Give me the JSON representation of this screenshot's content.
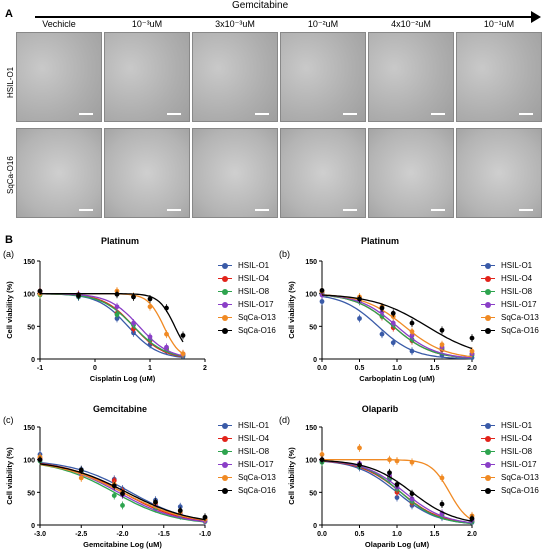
{
  "panel_a": {
    "letter": "A",
    "treatment": "Gemcitabine",
    "concentrations": [
      "Vechicle",
      "10⁻³uM",
      "3x10⁻³uM",
      "10⁻²uM",
      "4x10⁻²uM",
      "10⁻¹uM"
    ],
    "rows": [
      "HSIL-O1",
      "SqCa-O16"
    ]
  },
  "panel_b": {
    "letter": "B",
    "y_label": "Cell viability  (%)",
    "legend": [
      "HSIL-O1",
      "HSIL-O4",
      "HSIL-O8",
      "HSIL-O17",
      "SqCa-O13",
      "SqCa-O16"
    ]
  },
  "series_colors": [
    "#3a5ba8",
    "#e2231a",
    "#2ea44f",
    "#8a3fc7",
    "#f08a24",
    "#000000"
  ],
  "chart_data": [
    {
      "type": "line",
      "sub": "(a)",
      "title": "Platinum",
      "xlabel": "Cisplatin Log  (uM)",
      "ylabel": "Cell viability  (%)",
      "xlim": [
        -1,
        2
      ],
      "ylim": [
        0,
        150
      ],
      "xticks": [
        -1,
        0,
        1,
        2
      ],
      "yticks": [
        0,
        50,
        100,
        150
      ],
      "series": [
        {
          "name": "HSIL-O1",
          "x": [
            -1,
            -0.3,
            0.4,
            0.7,
            1.0,
            1.3,
            1.6
          ],
          "y": [
            100,
            95,
            62,
            40,
            22,
            12,
            4
          ],
          "ic50": 0.6,
          "hill": 1.6
        },
        {
          "name": "HSIL-O4",
          "x": [
            -1,
            -0.3,
            0.4,
            0.7,
            1.0,
            1.3,
            1.6
          ],
          "y": [
            104,
            98,
            70,
            46,
            28,
            15,
            8
          ],
          "ic50": 0.7,
          "hill": 1.6
        },
        {
          "name": "HSIL-O8",
          "x": [
            -1,
            -0.3,
            0.4,
            0.7,
            1.0,
            1.3,
            1.6
          ],
          "y": [
            98,
            96,
            68,
            52,
            30,
            16,
            6
          ],
          "ic50": 0.7,
          "hill": 1.5
        },
        {
          "name": "HSIL-O17",
          "x": [
            -1,
            -0.3,
            0.4,
            0.7,
            1.0,
            1.3,
            1.6
          ],
          "y": [
            102,
            99,
            80,
            55,
            34,
            18,
            7
          ],
          "ic50": 0.8,
          "hill": 1.6
        },
        {
          "name": "SqCa-O13",
          "x": [
            -1,
            -0.3,
            0.4,
            0.7,
            1.0,
            1.3,
            1.6
          ],
          "y": [
            100,
            98,
            104,
            96,
            80,
            38,
            8
          ],
          "ic50": 1.25,
          "hill": 3.0
        },
        {
          "name": "SqCa-O16",
          "x": [
            -1,
            -0.3,
            0.4,
            0.7,
            1.0,
            1.3,
            1.6
          ],
          "y": [
            104,
            97,
            99,
            95,
            92,
            78,
            36
          ],
          "ic50": 1.45,
          "hill": 3.0
        }
      ]
    },
    {
      "type": "line",
      "sub": "(b)",
      "title": "Platinum",
      "xlabel": "Carboplatin Log  (uM)",
      "ylabel": "Cell viability  (%)",
      "xlim": [
        0,
        2
      ],
      "ylim": [
        0,
        150
      ],
      "xticks": [
        0.0,
        0.5,
        1.0,
        1.5,
        2.0
      ],
      "yticks": [
        0,
        50,
        100,
        150
      ],
      "series": [
        {
          "name": "HSIL-O1",
          "x": [
            0,
            0.5,
            0.8,
            0.95,
            1.2,
            1.6,
            2.0
          ],
          "y": [
            88,
            62,
            38,
            25,
            12,
            6,
            2
          ],
          "ic50": 0.75,
          "hill": 1.8
        },
        {
          "name": "HSIL-O4",
          "x": [
            0,
            0.5,
            0.8,
            0.95,
            1.2,
            1.6,
            2.0
          ],
          "y": [
            102,
            90,
            65,
            48,
            28,
            14,
            8
          ],
          "ic50": 0.95,
          "hill": 1.7
        },
        {
          "name": "HSIL-O8",
          "x": [
            0,
            0.5,
            0.8,
            0.95,
            1.2,
            1.6,
            2.0
          ],
          "y": [
            100,
            88,
            66,
            52,
            30,
            16,
            6
          ],
          "ic50": 0.95,
          "hill": 1.7
        },
        {
          "name": "HSIL-O17",
          "x": [
            0,
            0.5,
            0.8,
            0.95,
            1.2,
            1.6,
            2.0
          ],
          "y": [
            98,
            90,
            72,
            55,
            36,
            18,
            8
          ],
          "ic50": 1.0,
          "hill": 1.7
        },
        {
          "name": "SqCa-O13",
          "x": [
            0,
            0.5,
            0.8,
            0.95,
            1.2,
            1.6,
            2.0
          ],
          "y": [
            104,
            95,
            80,
            65,
            42,
            22,
            12
          ],
          "ic50": 1.1,
          "hill": 1.6
        },
        {
          "name": "SqCa-O16",
          "x": [
            0,
            0.5,
            0.8,
            0.95,
            1.2,
            1.6,
            2.0
          ],
          "y": [
            105,
            92,
            78,
            70,
            55,
            44,
            32
          ],
          "ic50": 1.4,
          "hill": 1.2
        }
      ]
    },
    {
      "type": "line",
      "sub": "(c)",
      "title": "Gemcitabine",
      "xlabel": "Gemcitabine Log (uM)",
      "ylabel": "Cell viability  (%)",
      "xlim": [
        -3.0,
        -1.0
      ],
      "ylim": [
        0,
        150
      ],
      "xticks": [
        -3.0,
        -2.5,
        -2.0,
        -1.5,
        -1.0
      ],
      "yticks": [
        0,
        50,
        100,
        150
      ],
      "series": [
        {
          "name": "HSIL-O1",
          "x": [
            -3.0,
            -2.5,
            -2.1,
            -2.0,
            -1.6,
            -1.3,
            -1.0
          ],
          "y": [
            108,
            85,
            70,
            55,
            38,
            28,
            10
          ],
          "ic50": -1.9,
          "hill": 1.2
        },
        {
          "name": "HSIL-O4",
          "x": [
            -3.0,
            -2.5,
            -2.1,
            -2.0,
            -1.6,
            -1.3,
            -1.0
          ],
          "y": [
            102,
            80,
            68,
            52,
            32,
            18,
            8
          ],
          "ic50": -2.0,
          "hill": 1.2
        },
        {
          "name": "HSIL-O8",
          "x": [
            -3.0,
            -2.5,
            -2.1,
            -2.0,
            -1.6,
            -1.3,
            -1.0
          ],
          "y": [
            98,
            82,
            45,
            30,
            25,
            14,
            5
          ],
          "ic50": -2.1,
          "hill": 1.2
        },
        {
          "name": "HSIL-O17",
          "x": [
            -3.0,
            -2.5,
            -2.1,
            -2.0,
            -1.6,
            -1.3,
            -1.0
          ],
          "y": [
            100,
            78,
            58,
            46,
            30,
            16,
            6
          ],
          "ic50": -2.05,
          "hill": 1.2
        },
        {
          "name": "SqCa-O13",
          "x": [
            -3.0,
            -2.5,
            -2.1,
            -2.0,
            -1.6,
            -1.3,
            -1.0
          ],
          "y": [
            104,
            72,
            62,
            50,
            34,
            20,
            9
          ],
          "ic50": -2.0,
          "hill": 1.1
        },
        {
          "name": "SqCa-O16",
          "x": [
            -3.0,
            -2.5,
            -2.1,
            -2.0,
            -1.6,
            -1.3,
            -1.0
          ],
          "y": [
            100,
            84,
            60,
            48,
            35,
            22,
            12
          ],
          "ic50": -1.95,
          "hill": 1.1
        }
      ]
    },
    {
      "type": "line",
      "sub": "(d)",
      "title": "Olaparib",
      "xlabel": "Olaparib Log (uM)",
      "ylabel": "Cell viability  (%)",
      "xlim": [
        0,
        2
      ],
      "ylim": [
        0,
        150
      ],
      "xticks": [
        0.0,
        0.5,
        1.0,
        1.5,
        2.0
      ],
      "yticks": [
        0,
        50,
        100,
        150
      ],
      "series": [
        {
          "name": "HSIL-O1",
          "x": [
            0,
            0.5,
            0.9,
            1.0,
            1.2,
            1.6,
            2.0
          ],
          "y": [
            98,
            88,
            70,
            42,
            30,
            12,
            4
          ],
          "ic50": 1.0,
          "hill": 1.6
        },
        {
          "name": "HSIL-O4",
          "x": [
            0,
            0.5,
            0.9,
            1.0,
            1.2,
            1.6,
            2.0
          ],
          "y": [
            100,
            92,
            74,
            50,
            34,
            16,
            6
          ],
          "ic50": 1.05,
          "hill": 1.6
        },
        {
          "name": "HSIL-O8",
          "x": [
            0,
            0.5,
            0.9,
            1.0,
            1.2,
            1.6,
            2.0
          ],
          "y": [
            96,
            90,
            72,
            55,
            36,
            14,
            5
          ],
          "ic50": 1.05,
          "hill": 1.7
        },
        {
          "name": "HSIL-O17",
          "x": [
            0,
            0.5,
            0.9,
            1.0,
            1.2,
            1.6,
            2.0
          ],
          "y": [
            100,
            94,
            76,
            58,
            40,
            18,
            8
          ],
          "ic50": 1.1,
          "hill": 1.6
        },
        {
          "name": "SqCa-O13",
          "x": [
            0,
            0.5,
            0.9,
            1.0,
            1.2,
            1.6,
            2.0
          ],
          "y": [
            108,
            118,
            100,
            98,
            96,
            72,
            14
          ],
          "ic50": 1.7,
          "hill": 3.5
        },
        {
          "name": "SqCa-O16",
          "x": [
            0,
            0.5,
            0.9,
            1.0,
            1.2,
            1.6,
            2.0
          ],
          "y": [
            100,
            92,
            80,
            62,
            48,
            32,
            10
          ],
          "ic50": 1.2,
          "hill": 1.5
        }
      ]
    }
  ]
}
